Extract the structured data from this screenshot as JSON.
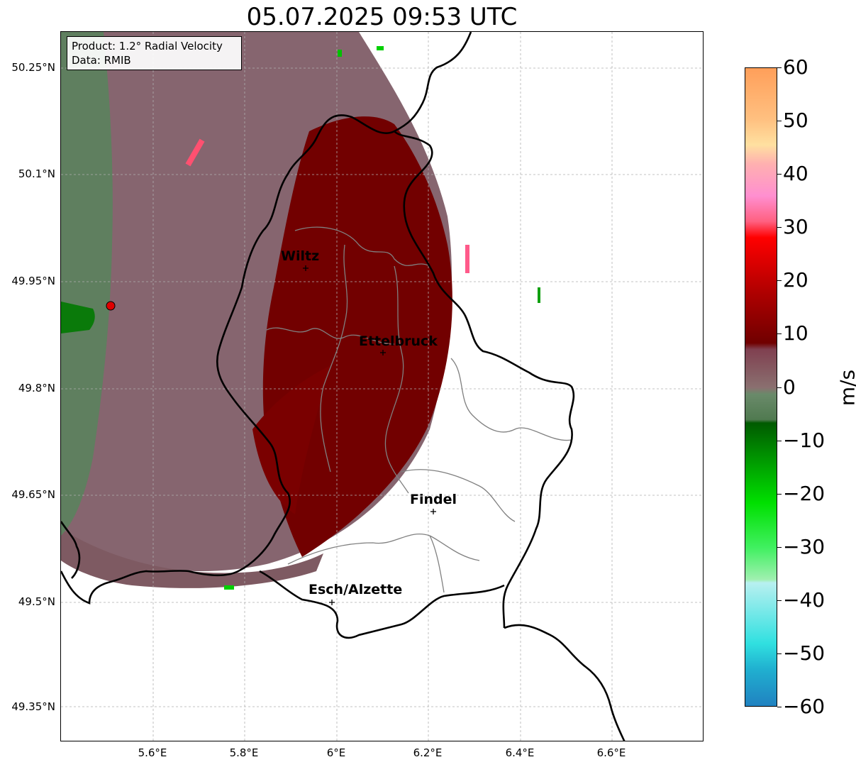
{
  "title": "05.07.2025 09:53 UTC",
  "info": {
    "product": "Product: 1.2° Radial Velocity",
    "data": "Data: RMIB"
  },
  "axes": {
    "lat_labels": [
      "50.25°N",
      "50.1°N",
      "49.95°N",
      "49.8°N",
      "49.65°N",
      "49.5°N",
      "49.35°N"
    ],
    "lon_labels": [
      "5.6°E",
      "5.8°E",
      "6°E",
      "6.2°E",
      "6.4°E",
      "6.6°E"
    ],
    "grid": true
  },
  "cities": [
    {
      "name": "Wiltz"
    },
    {
      "name": "Ettelbruck"
    },
    {
      "name": "Findel"
    },
    {
      "name": "Esch/Alzette"
    }
  ],
  "colorbar": {
    "unit": "m/s",
    "ticks": [
      "60",
      "50",
      "40",
      "30",
      "20",
      "10",
      "0",
      "−10",
      "−20",
      "−30",
      "−40",
      "−50",
      "−60"
    ],
    "min": -60,
    "max": 60,
    "colors": {
      "orange_top": "#ff9f5a",
      "peach": "#ffc98a",
      "pink": "#ff8fd0",
      "red": "#ff0000",
      "maroon": "#7a0000",
      "mauve": "#8a5a62",
      "grey_green": "#6b8f6b",
      "dark_green": "#006400",
      "bright_green": "#00e000",
      "light_green": "#90f0a0",
      "light_cyan": "#b8f0f0",
      "cyan": "#30e0e0",
      "blue_bottom": "#2080c0"
    }
  },
  "legend_colors": {
    "radar_site": "#e00000",
    "border": "#000000",
    "canton_border": "#808080"
  }
}
